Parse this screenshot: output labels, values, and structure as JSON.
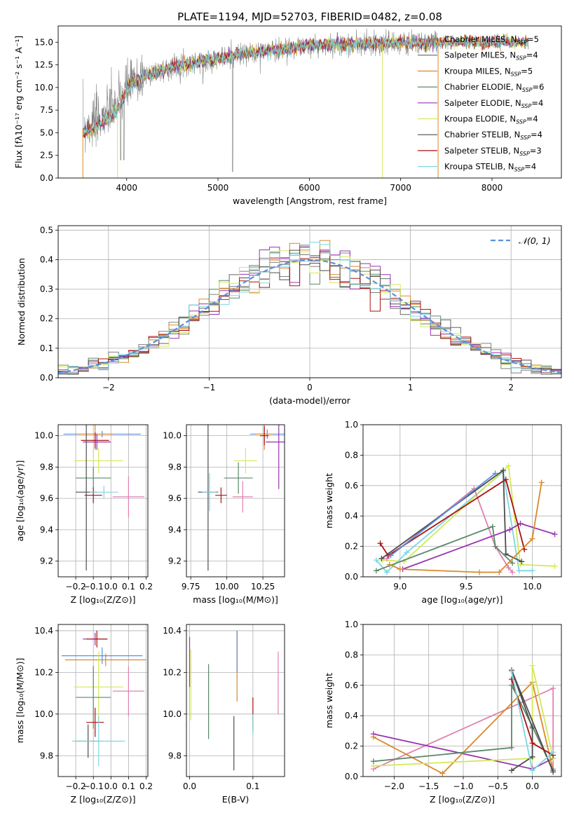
{
  "figure": {
    "title": "PLATE=1194, MJD=52703, FIBERID=0482, z=0.08"
  },
  "colors": {
    "series": [
      "#808080",
      "#666666",
      "#d9892b",
      "#5a8a6a",
      "#9932b0",
      "#d4e85a",
      "#4d4d4d",
      "#aa1111",
      "#7dd6e0"
    ],
    "normal": "#5b8fe0",
    "extra_pink": "#e080b0",
    "extra_blue": "#5b8fe0"
  },
  "legend_top": [
    {
      "label": "Chabrier MILES, N",
      "sub": "SSP",
      "tail": "=5"
    },
    {
      "label": "Salpeter MILES, N",
      "sub": "SSP",
      "tail": "=4"
    },
    {
      "label": "Kroupa MILES, N",
      "sub": "SSP",
      "tail": "=5"
    },
    {
      "label": "Chabrier ELODIE, N",
      "sub": "SSP",
      "tail": "=6"
    },
    {
      "label": "Salpeter ELODIE, N",
      "sub": "SSP",
      "tail": "=4"
    },
    {
      "label": "Kroupa ELODIE, N",
      "sub": "SSP",
      "tail": "=4"
    },
    {
      "label": "Chabrier STELIB, N",
      "sub": "SSP",
      "tail": "=4"
    },
    {
      "label": "Salpeter STELIB, N",
      "sub": "SSP",
      "tail": "=3"
    },
    {
      "label": "Kroupa STELIB, N",
      "sub": "SSP",
      "tail": "=4"
    }
  ],
  "chart_data": [
    {
      "id": "spectrum",
      "type": "line",
      "title": "PLATE=1194, MJD=52703, FIBERID=0482, z=0.08",
      "xlabel": "wavelength [Angstrom, rest frame]",
      "ylabel": "Flux [fλ10⁻¹⁷ erg cm⁻² s⁻¹ A⁻¹]",
      "xlim": [
        3250,
        8760
      ],
      "ylim": [
        0,
        16.8
      ],
      "xticks": [
        4000,
        5000,
        6000,
        7000,
        8000
      ],
      "yticks": [
        0.0,
        2.5,
        5.0,
        7.5,
        10.0,
        12.5,
        15.0
      ],
      "xticklabels": [
        "4000",
        "5000",
        "6000",
        "7000",
        "8000"
      ],
      "yticklabels": [
        "0.0",
        "2.5",
        "5.0",
        "7.5",
        "10.0",
        "12.5",
        "15.0"
      ],
      "continuum": [
        [
          3520,
          5.5
        ],
        [
          3700,
          6.5
        ],
        [
          3900,
          8.2
        ],
        [
          4000,
          10.0
        ],
        [
          4200,
          11.3
        ],
        [
          4500,
          12.3
        ],
        [
          5000,
          13.2
        ],
        [
          5500,
          14.0
        ],
        [
          6000,
          14.6
        ],
        [
          6500,
          14.8
        ],
        [
          7000,
          14.9
        ],
        [
          7400,
          15.0
        ]
      ],
      "data_xrange": [
        3520,
        7400
      ],
      "model_xrange": [
        3520,
        8400
      ]
    },
    {
      "id": "residuals",
      "type": "histogram",
      "xlabel": "(data-model)/error",
      "ylabel": "Normed distribution",
      "xlim": [
        -2.5,
        2.5
      ],
      "ylim": [
        0,
        0.515
      ],
      "xticks": [
        -2,
        -1,
        0,
        1,
        2
      ],
      "xticklabels": [
        "−2",
        "−1",
        "0",
        "1",
        "2"
      ],
      "yticks": [
        0.0,
        0.1,
        0.2,
        0.3,
        0.4,
        0.5
      ],
      "yticklabels": [
        "0.0",
        "0.1",
        "0.2",
        "0.3",
        "0.4",
        "0.5"
      ],
      "bin_width": 0.1,
      "reference_label": "𝒩(0, 1)"
    },
    {
      "id": "age_vs_Z",
      "type": "errorbar",
      "xlabel": "Z [log₁₀(Z/Z⊙)]",
      "ylabel": "age  [log₁₀(age/yr)]",
      "xlim": [
        -0.3,
        0.21
      ],
      "ylim": [
        9.1,
        10.07
      ],
      "xticks": [
        -0.2,
        -0.1,
        0.0,
        0.1,
        0.2
      ],
      "xticklabels": [
        "−0.2",
        "−0.1",
        "0.0",
        "0.1",
        "0.2"
      ],
      "yticks": [
        9.2,
        9.4,
        9.6,
        9.8,
        10.0
      ],
      "yticklabels": [
        "9.2",
        "9.4",
        "9.6",
        "9.8",
        "10.0"
      ],
      "points": [
        {
          "x": -0.05,
          "y": 10.01,
          "xerr": 0.22,
          "yerr": 0.02,
          "c": "#5b8fe0"
        },
        {
          "x": -0.09,
          "y": 10.01,
          "xerr": 0.1,
          "yerr": 0.1,
          "c": "#d9892b"
        },
        {
          "x": -0.09,
          "y": 9.97,
          "xerr": 0.08,
          "yerr": 0.05,
          "c": "#aa1111"
        },
        {
          "x": -0.08,
          "y": 9.96,
          "xerr": 0.08,
          "yerr": 0.05,
          "c": "#9932b0"
        },
        {
          "x": -0.07,
          "y": 9.84,
          "xerr": 0.14,
          "yerr": 0.08,
          "c": "#d4e85a"
        },
        {
          "x": -0.1,
          "y": 9.73,
          "xerr": 0.1,
          "yerr": 0.07,
          "c": "#5a8a6a"
        },
        {
          "x": -0.14,
          "y": 9.64,
          "xerr": 0.06,
          "yerr": 0.5,
          "c": "#4d4d4d"
        },
        {
          "x": -0.1,
          "y": 9.62,
          "xerr": 0.05,
          "yerr": 0.05,
          "c": "#aa1111"
        },
        {
          "x": 0.1,
          "y": 9.61,
          "xerr": 0.09,
          "yerr": 0.13,
          "c": "#e080b0"
        },
        {
          "x": -0.04,
          "y": 9.64,
          "xerr": 0.08,
          "yerr": 0.04,
          "c": "#7dd6e0"
        }
      ]
    },
    {
      "id": "age_vs_mass",
      "type": "errorbar",
      "xlabel": "mass [log₁₀(M/M⊙)]",
      "ylabel": "",
      "xlim": [
        9.72,
        10.4
      ],
      "ylim": [
        9.1,
        10.07
      ],
      "xticks": [
        9.75,
        10.0,
        10.25
      ],
      "xticklabels": [
        "9.75",
        "10.00",
        "10.25"
      ],
      "yticks": [
        9.2,
        9.4,
        9.6,
        9.8,
        10.0
      ],
      "yticklabels": [
        "9.2",
        "9.4",
        "9.6",
        "9.8",
        "10.0"
      ],
      "points": [
        {
          "x": 10.28,
          "y": 10.01,
          "xerr": 0.12,
          "yerr": 0.03,
          "c": "#5b8fe0"
        },
        {
          "x": 10.26,
          "y": 10.01,
          "xerr": 0.06,
          "yerr": 0.1,
          "c": "#d9892b"
        },
        {
          "x": 10.26,
          "y": 10.0,
          "xerr": 0.03,
          "yerr": 0.06,
          "c": "#aa1111"
        },
        {
          "x": 10.36,
          "y": 9.96,
          "xerr": 0.09,
          "yerr": 0.3,
          "c": "#9932b0"
        },
        {
          "x": 10.13,
          "y": 9.84,
          "xerr": 0.08,
          "yerr": 0.08,
          "c": "#d4e85a"
        },
        {
          "x": 10.08,
          "y": 9.73,
          "xerr": 0.1,
          "yerr": 0.1,
          "c": "#5a8a6a"
        },
        {
          "x": 9.87,
          "y": 9.64,
          "xerr": 0.07,
          "yerr": 0.5,
          "c": "#4d4d4d"
        },
        {
          "x": 9.96,
          "y": 9.62,
          "xerr": 0.04,
          "yerr": 0.05,
          "c": "#aa1111"
        },
        {
          "x": 10.11,
          "y": 9.61,
          "xerr": 0.07,
          "yerr": 0.1,
          "c": "#e080b0"
        },
        {
          "x": 9.88,
          "y": 9.64,
          "xerr": 0.05,
          "yerr": 0.12,
          "c": "#7dd6e0"
        }
      ]
    },
    {
      "id": "weight_vs_age",
      "type": "line",
      "xlabel": "age  [log₁₀(age/yr)]",
      "ylabel": "mass weight",
      "xlim": [
        8.72,
        10.22
      ],
      "ylim": [
        0,
        1
      ],
      "xticks": [
        9.0,
        9.5,
        10.0
      ],
      "xticklabels": [
        "9.0",
        "9.5",
        "10.0"
      ],
      "yticks": [
        0.0,
        0.2,
        0.4,
        0.6,
        0.8,
        1.0
      ],
      "yticklabels": [
        "0.0",
        "0.2",
        "0.4",
        "0.6",
        "0.8",
        "1.0"
      ],
      "series": [
        {
          "c": "#7dd6e0",
          "pts": [
            [
              8.82,
              0.11
            ],
            [
              8.9,
              0.03
            ],
            [
              9.05,
              0.16
            ],
            [
              9.78,
              0.69
            ],
            [
              9.9,
              0.04
            ],
            [
              10.0,
              0.04
            ]
          ]
        },
        {
          "c": "#d4e85a",
          "pts": [
            [
              8.87,
              0.11
            ],
            [
              9.03,
              0.1
            ],
            [
              9.82,
              0.73
            ],
            [
              9.91,
              0.08
            ],
            [
              10.17,
              0.07
            ]
          ]
        },
        {
          "c": "#e080b0",
          "pts": [
            [
              8.9,
              0.12
            ],
            [
              9.56,
              0.58
            ],
            [
              9.72,
              0.2
            ],
            [
              9.82,
              0.06
            ],
            [
              9.85,
              0.03
            ]
          ]
        },
        {
          "c": "#9932b0",
          "pts": [
            [
              9.02,
              0.05
            ],
            [
              9.83,
              0.31
            ],
            [
              9.91,
              0.35
            ],
            [
              10.17,
              0.28
            ]
          ]
        },
        {
          "c": "#aa1111",
          "pts": [
            [
              8.85,
              0.22
            ],
            [
              8.91,
              0.14
            ],
            [
              9.8,
              0.64
            ],
            [
              9.94,
              0.18
            ]
          ]
        },
        {
          "c": "#4d4d4d",
          "pts": [
            [
              8.86,
              0.12
            ],
            [
              9.78,
              0.7
            ],
            [
              9.8,
              0.15
            ],
            [
              9.92,
              0.1
            ]
          ]
        },
        {
          "c": "#5a8a6a",
          "pts": [
            [
              8.82,
              0.04
            ],
            [
              9.7,
              0.33
            ],
            [
              9.72,
              0.2
            ],
            [
              9.85,
              0.09
            ]
          ]
        },
        {
          "c": "#d9892b",
          "pts": [
            [
              8.92,
              0.08
            ],
            [
              9.0,
              0.05
            ],
            [
              9.6,
              0.03
            ],
            [
              9.75,
              0.03
            ],
            [
              10.0,
              0.25
            ],
            [
              10.07,
              0.62
            ]
          ]
        },
        {
          "c": "#5b8fe0",
          "pts": [
            [
              8.93,
              0.14
            ],
            [
              9.72,
              0.68
            ]
          ]
        }
      ]
    },
    {
      "id": "mass_vs_Z",
      "type": "errorbar",
      "xlabel": "Z [log₁₀(Z/Z⊙)]",
      "ylabel": "mass [log₁₀(M/M⊙)]",
      "xlim": [
        -0.3,
        0.21
      ],
      "ylim": [
        9.7,
        10.43
      ],
      "xticks": [
        -0.2,
        -0.1,
        0.0,
        0.1,
        0.2
      ],
      "xticklabels": [
        "−0.2",
        "−0.1",
        "0.0",
        "0.1",
        "0.2"
      ],
      "yticks": [
        9.8,
        10.0,
        10.2,
        10.4
      ],
      "yticklabels": [
        "9.8",
        "10.0",
        "10.2",
        "10.4"
      ],
      "points": [
        {
          "x": -0.05,
          "y": 10.28,
          "xerr": 0.23,
          "yerr": 0.04,
          "c": "#5b8fe0"
        },
        {
          "x": -0.03,
          "y": 10.26,
          "xerr": 0.23,
          "yerr": 0.03,
          "c": "#d9892b"
        },
        {
          "x": -0.09,
          "y": 10.36,
          "xerr": 0.07,
          "yerr": 0.03,
          "c": "#9932b0"
        },
        {
          "x": -0.08,
          "y": 10.36,
          "xerr": 0.06,
          "yerr": 0.04,
          "c": "#aa1111"
        },
        {
          "x": 0.1,
          "y": 10.11,
          "xerr": 0.09,
          "yerr": 0.12,
          "c": "#e080b0"
        },
        {
          "x": -0.07,
          "y": 10.13,
          "xerr": 0.14,
          "yerr": 0.17,
          "c": "#d4e85a"
        },
        {
          "x": -0.1,
          "y": 10.08,
          "xerr": 0.1,
          "yerr": 0.15,
          "c": "#5a8a6a"
        },
        {
          "x": -0.09,
          "y": 9.96,
          "xerr": 0.05,
          "yerr": 0.07,
          "c": "#aa1111"
        },
        {
          "x": -0.13,
          "y": 9.87,
          "xerr": 0.07,
          "yerr": 0.08,
          "c": "#4d4d4d"
        },
        {
          "x": -0.07,
          "y": 9.87,
          "xerr": 0.15,
          "yerr": 0.12,
          "c": "#7dd6e0"
        }
      ]
    },
    {
      "id": "mass_vs_ebv",
      "type": "errorbar",
      "xlabel": "E(B-V)",
      "ylabel": "",
      "xlim": [
        -0.005,
        0.15
      ],
      "ylim": [
        9.7,
        10.43
      ],
      "xticks": [
        0.0,
        0.1
      ],
      "xticklabels": [
        "0.0",
        "0.1"
      ],
      "yticks": [
        9.8,
        10.0,
        10.2,
        10.4
      ],
      "yticklabels": [
        "9.8",
        "10.0",
        "10.2",
        "10.4"
      ],
      "points": [
        {
          "x": 0.0,
          "y": 10.25,
          "xerr": 0,
          "yerr": 0.12,
          "c": "#9932b0"
        },
        {
          "x": 0.002,
          "y": 10.14,
          "xerr": 0,
          "yerr": 0.17,
          "c": "#d4e85a"
        },
        {
          "x": 0.03,
          "y": 10.06,
          "xerr": 0,
          "yerr": 0.18,
          "c": "#5a8a6a"
        },
        {
          "x": 0.07,
          "y": 9.86,
          "xerr": 0,
          "yerr": 0.13,
          "c": "#4d4d4d"
        },
        {
          "x": 0.075,
          "y": 10.23,
          "xerr": 0,
          "yerr": 0.17,
          "c": "#d9892b"
        },
        {
          "x": 0.075,
          "y": 10.3,
          "xerr": 0,
          "yerr": 0.1,
          "c": "#5b8fe0"
        },
        {
          "x": 0.1,
          "y": 10.0,
          "xerr": 0,
          "yerr": 0.08,
          "c": "#aa1111"
        },
        {
          "x": 0.1,
          "y": 9.95,
          "xerr": 0,
          "yerr": 0.05,
          "c": "#7dd6e0"
        },
        {
          "x": 0.14,
          "y": 10.15,
          "xerr": 0,
          "yerr": 0.15,
          "c": "#e080b0"
        }
      ]
    },
    {
      "id": "weight_vs_Z",
      "type": "line",
      "xlabel": "Z [log₁₀(Z/Z⊙)]",
      "ylabel": "mass weight",
      "xlim": [
        -2.45,
        0.42
      ],
      "ylim": [
        0,
        1
      ],
      "xticks": [
        -2.0,
        -1.5,
        -1.0,
        -0.5,
        0.0
      ],
      "xticklabels": [
        "−2.0",
        "−1.5",
        "−1.0",
        "−0.5",
        "0.0"
      ],
      "yticks": [
        0.0,
        0.2,
        0.4,
        0.6,
        0.8,
        1.0
      ],
      "yticklabels": [
        "0.0",
        "0.2",
        "0.4",
        "0.6",
        "0.8",
        "1.0"
      ],
      "series": [
        {
          "c": "#e080b0",
          "pts": [
            [
              -2.3,
              0.05
            ],
            [
              0.3,
              0.58
            ],
            [
              0.3,
              0.05
            ]
          ]
        },
        {
          "c": "#9932b0",
          "pts": [
            [
              -2.3,
              0.28
            ],
            [
              0.0,
              0.05
            ],
            [
              0.3,
              0.12
            ]
          ]
        },
        {
          "c": "#d9892b",
          "pts": [
            [
              -2.3,
              0.26
            ],
            [
              -1.3,
              0.02
            ],
            [
              0.0,
              0.62
            ],
            [
              0.3,
              0.04
            ]
          ]
        },
        {
          "c": "#d4e85a",
          "pts": [
            [
              -2.3,
              0.07
            ],
            [
              0.0,
              0.12
            ],
            [
              0.0,
              0.73
            ],
            [
              0.3,
              0.12
            ]
          ]
        },
        {
          "c": "#5a8a6a",
          "pts": [
            [
              -2.3,
              0.1
            ],
            [
              -0.3,
              0.19
            ],
            [
              -0.3,
              0.6
            ],
            [
              0.0,
              0.33
            ],
            [
              0.3,
              0.04
            ]
          ]
        },
        {
          "c": "#4d4d4d",
          "pts": [
            [
              -0.3,
              0.04
            ],
            [
              0.0,
              0.13
            ],
            [
              0.0,
              0.32
            ],
            [
              -0.3,
              0.7
            ],
            [
              0.3,
              0.03
            ]
          ]
        },
        {
          "c": "#aa1111",
          "pts": [
            [
              -0.3,
              0.64
            ],
            [
              0.0,
              0.22
            ],
            [
              0.3,
              0.14
            ]
          ]
        },
        {
          "c": "#7dd6e0",
          "pts": [
            [
              -0.3,
              0.69
            ],
            [
              0.0,
              0.04
            ],
            [
              0.3,
              0.16
            ]
          ]
        }
      ]
    }
  ]
}
